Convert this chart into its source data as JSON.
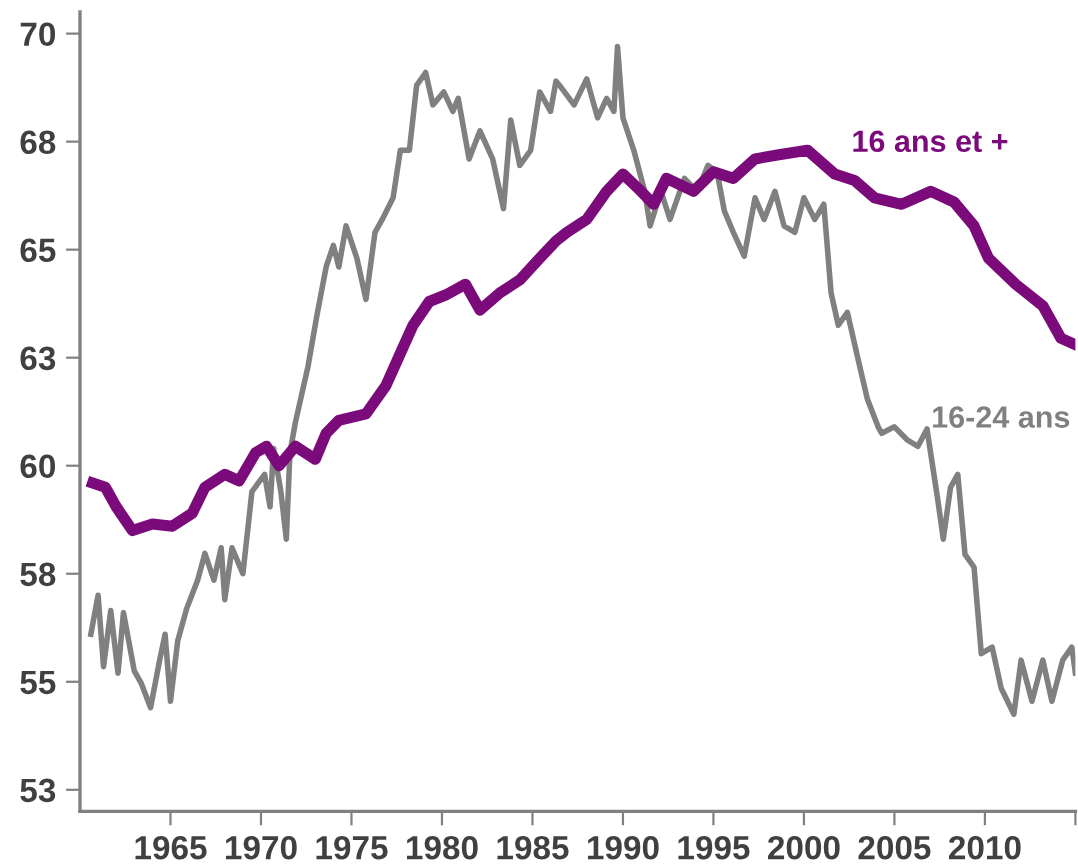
{
  "chart_data": {
    "type": "line",
    "xlim": [
      1960,
      2015
    ],
    "xticks": [
      1965,
      1970,
      1975,
      1980,
      1985,
      1990,
      1995,
      2000,
      2005,
      2010,
      {
        "value": 2015,
        "label": null
      }
    ],
    "ylim": [
      52,
      70.5
    ],
    "yticks": [
      70,
      {
        "value": 67.5,
        "label": "68"
      },
      65,
      {
        "value": 62.5,
        "label": "63"
      },
      60,
      {
        "value": 57.5,
        "label": "58"
      },
      55,
      {
        "value": 52.5,
        "label": "53"
      }
    ],
    "grid": false,
    "legend": false,
    "marker": "none",
    "line_style": "solid",
    "series": [
      {
        "name": "16-24 ans",
        "color": "#808080",
        "x": [
          1960.6,
          1961.0,
          1961.3,
          1961.7,
          1962.1,
          1962.4,
          1963.0,
          1963.4,
          1963.9,
          1964.4,
          1964.7,
          1965.0,
          1965.4,
          1965.9,
          1966.5,
          1966.9,
          1967.4,
          1967.8,
          1968.0,
          1968.4,
          1969.0,
          1969.5,
          1970.2,
          1970.5,
          1970.7,
          1971.1,
          1971.4,
          1971.6,
          1971.9,
          1972.6,
          1973.1,
          1973.6,
          1974.0,
          1974.3,
          1974.7,
          1975.3,
          1975.8,
          1976.3,
          1976.7,
          1977.3,
          1977.7,
          1978.2,
          1978.6,
          1979.1,
          1979.5,
          1980.1,
          1980.6,
          1980.9,
          1981.5,
          1982.1,
          1982.8,
          1983.4,
          1983.8,
          1984.3,
          1984.9,
          1985.4,
          1986.0,
          1986.3,
          1986.5,
          1987.3,
          1988.0,
          1988.6,
          1989.1,
          1989.5,
          1989.7,
          1990.0,
          1990.6,
          1991.2,
          1991.5,
          1992.1,
          1992.6,
          1993.4,
          1994.1,
          1994.7,
          1995.2,
          1995.6,
          1996.1,
          1996.7,
          1997.3,
          1997.8,
          1998.4,
          1998.9,
          1999.5,
          2000.0,
          2000.6,
          2001.1,
          2001.5,
          2001.9,
          2002.4,
          2003.0,
          2003.5,
          2004.1,
          2004.3,
          2005.0,
          2005.7,
          2006.3,
          2006.8,
          2007.4,
          2007.7,
          2008.1,
          2008.5,
          2008.9,
          2009.4,
          2009.8,
          2010.4,
          2010.9,
          2011.6,
          2012.0,
          2012.6,
          2013.2,
          2013.7,
          2014.3,
          2014.8,
          2015.0
        ],
        "values": [
          56.1,
          57.0,
          55.35,
          56.65,
          55.2,
          56.6,
          55.25,
          54.95,
          54.4,
          55.5,
          56.1,
          54.55,
          55.95,
          56.7,
          57.35,
          57.97,
          57.35,
          58.1,
          56.9,
          58.1,
          57.5,
          59.4,
          59.8,
          59.05,
          60.4,
          59.4,
          58.3,
          60.3,
          61.0,
          62.3,
          63.5,
          64.6,
          65.1,
          64.6,
          65.55,
          64.8,
          63.85,
          65.4,
          65.7,
          66.2,
          67.3,
          67.3,
          68.8,
          69.1,
          68.35,
          68.65,
          68.2,
          68.5,
          67.1,
          67.75,
          67.1,
          65.95,
          68.0,
          66.95,
          67.3,
          68.65,
          68.2,
          68.9,
          68.8,
          68.35,
          68.95,
          68.05,
          68.5,
          68.2,
          69.7,
          68.05,
          67.3,
          66.35,
          65.55,
          66.35,
          65.7,
          66.65,
          66.35,
          66.95,
          66.8,
          65.9,
          65.4,
          64.85,
          66.2,
          65.7,
          66.35,
          65.55,
          65.4,
          66.2,
          65.7,
          66.05,
          64.0,
          63.25,
          63.55,
          62.45,
          61.55,
          60.9,
          60.75,
          60.9,
          60.6,
          60.45,
          60.85,
          59.2,
          58.3,
          59.5,
          59.8,
          57.95,
          57.65,
          55.65,
          55.8,
          54.85,
          54.25,
          55.5,
          54.55,
          55.5,
          54.55,
          55.5,
          55.8,
          55.2
        ]
      },
      {
        "name": "16 ans et +",
        "color": "#7b0a7b",
        "x": [
          1960.7,
          1961.4,
          1962.0,
          1962.9,
          1964.0,
          1965.1,
          1966.2,
          1966.9,
          1968.0,
          1968.8,
          1969.7,
          1970.3,
          1971.0,
          1971.9,
          1973.0,
          1973.6,
          1974.3,
          1975.8,
          1976.9,
          1977.7,
          1978.4,
          1979.3,
          1980.2,
          1981.3,
          1982.1,
          1983.2,
          1984.3,
          1985.4,
          1986.3,
          1986.9,
          1988.0,
          1989.1,
          1990.0,
          1991.0,
          1991.7,
          1992.4,
          1993.9,
          1995.0,
          1996.1,
          1997.3,
          1998.7,
          2000.2,
          2001.7,
          2002.8,
          2003.9,
          2005.4,
          2007.0,
          2008.3,
          2009.4,
          2010.2,
          2011.7,
          2013.2,
          2014.2,
          2015.0
        ],
        "values": [
          59.6,
          59.5,
          59.05,
          58.5,
          58.65,
          58.6,
          58.9,
          59.5,
          59.8,
          59.65,
          60.3,
          60.45,
          60.0,
          60.45,
          60.15,
          60.75,
          61.05,
          61.2,
          61.85,
          62.6,
          63.25,
          63.8,
          63.95,
          64.2,
          63.6,
          64.0,
          64.3,
          64.8,
          65.2,
          65.4,
          65.7,
          66.35,
          66.75,
          66.35,
          66.05,
          66.65,
          66.35,
          66.8,
          66.65,
          67.1,
          67.2,
          67.3,
          66.75,
          66.6,
          66.2,
          66.05,
          66.35,
          66.1,
          65.55,
          64.8,
          64.2,
          63.7,
          62.95,
          62.8
        ]
      }
    ]
  }
}
